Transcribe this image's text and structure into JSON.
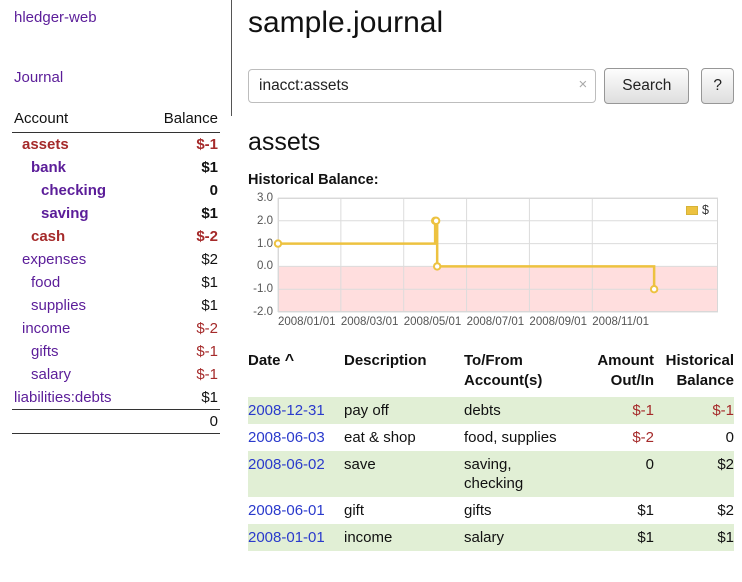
{
  "colors": {
    "purple": "#5b1d99",
    "negative_red": "#a52a2a",
    "link_blue": "#2a3acc",
    "row_green": "#e1efd5",
    "chart_line_gold": "#edc240",
    "chart_negative_fill": "#ffdede"
  },
  "app": {
    "title": "hledger-web",
    "journal_link": "Journal"
  },
  "sidebar": {
    "header": {
      "account": "Account",
      "balance": "Balance"
    },
    "accounts": [
      {
        "name": "assets",
        "balance": "$-1"
      },
      {
        "name": "bank",
        "balance": "$1"
      },
      {
        "name": "checking",
        "balance": "0"
      },
      {
        "name": "saving",
        "balance": "$1"
      },
      {
        "name": "cash",
        "balance": "$-2"
      },
      {
        "name": "expenses",
        "balance": "$2"
      },
      {
        "name": "food",
        "balance": "$1"
      },
      {
        "name": "supplies",
        "balance": "$1"
      },
      {
        "name": "income",
        "balance": "$-2"
      },
      {
        "name": "gifts",
        "balance": "$-1"
      },
      {
        "name": "salary",
        "balance": "$-1"
      },
      {
        "name": "liabilities:debts",
        "balance": "$1"
      }
    ],
    "total": "0"
  },
  "main": {
    "title": "sample.journal",
    "search": {
      "value": "inacct:assets",
      "clear_icon": "×",
      "search_button": "Search",
      "help_button": "?"
    },
    "account_heading": "assets",
    "chart_label": "Historical Balance:"
  },
  "chart_data": {
    "type": "line",
    "title": "Historical Balance",
    "line_style": "step",
    "legend_label": "$",
    "legend_position": "top-right",
    "grid": true,
    "x_ticks": [
      "2008/01/01",
      "2008/03/01",
      "2008/05/01",
      "2008/07/01",
      "2008/09/01",
      "2008/11/01"
    ],
    "y_ticks": [
      "3.0",
      "2.0",
      "1.0",
      "0.0",
      "-1.0",
      "-2.0"
    ],
    "ylim": [
      -2,
      3
    ],
    "x_range_months": 14,
    "series": [
      {
        "name": "$",
        "color": "#edc240",
        "points": [
          [
            "2008-01-01",
            1
          ],
          [
            "2008-06-01",
            2
          ],
          [
            "2008-06-02",
            2
          ],
          [
            "2008-06-03",
            0
          ],
          [
            "2008-12-31",
            -1
          ]
        ]
      }
    ]
  },
  "register": {
    "header": {
      "date": "Date",
      "sort_indicator": "^",
      "description": "Description",
      "tofrom_line1": "To/From",
      "tofrom_line2": "Account(s)",
      "amount_line1": "Amount",
      "amount_line2": "Out/In",
      "balance_line1": "Historical",
      "balance_line2": "Balance"
    },
    "rows": [
      {
        "date": "2008-12-31",
        "description": "pay off",
        "accounts": "debts",
        "amount": "$-1",
        "balance": "$-1"
      },
      {
        "date": "2008-06-03",
        "description": "eat & shop",
        "accounts": "food, supplies",
        "amount": "$-2",
        "balance": "0"
      },
      {
        "date": "2008-06-02",
        "description": "save",
        "accounts": "saving, checking",
        "amount": "0",
        "balance": "$2"
      },
      {
        "date": "2008-06-01",
        "description": "gift",
        "accounts": "gifts",
        "amount": "$1",
        "balance": "$2"
      },
      {
        "date": "2008-01-01",
        "description": "income",
        "accounts": "salary",
        "amount": "$1",
        "balance": "$1"
      }
    ]
  }
}
